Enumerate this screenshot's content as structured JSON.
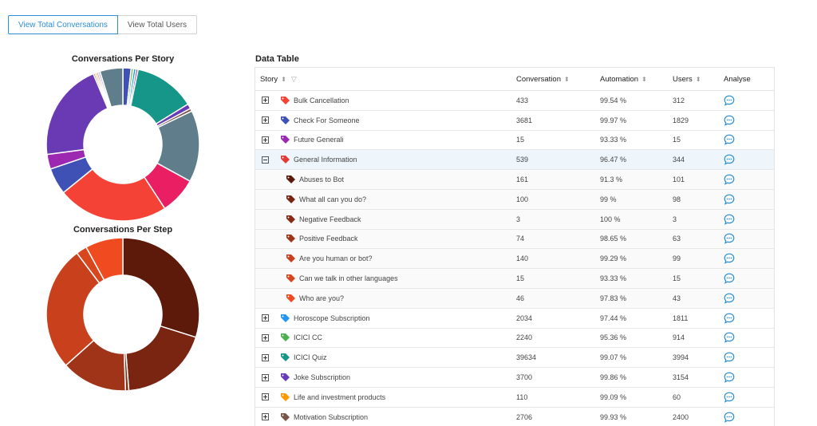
{
  "toggle": {
    "total_conversations": "View Total Conversations",
    "total_users": "View Total Users"
  },
  "charts": {
    "story_title": "Conversations Per Story",
    "step_title": "Conversations Per Step"
  },
  "story_segments": [
    {
      "value": 2.0,
      "color": "#3f51b5"
    },
    {
      "value": 0.6,
      "color": "#8bc34a"
    },
    {
      "value": 0.6,
      "color": "#03a9f4"
    },
    {
      "value": 0.5,
      "color": "#9c27b0"
    },
    {
      "value": 15.0,
      "color": "#169689"
    },
    {
      "value": 1.2,
      "color": "#673ab7"
    },
    {
      "value": 0.7,
      "color": "#795548"
    },
    {
      "value": 17.5,
      "color": "#607d8b"
    },
    {
      "value": 9.0,
      "color": "#e91e63"
    },
    {
      "value": 27.0,
      "color": "#f44336"
    },
    {
      "value": 6.5,
      "color": "#3f51b5"
    },
    {
      "value": 3.6,
      "color": "#9c27b0"
    },
    {
      "value": 24.0,
      "color": "#6a3ab5"
    },
    {
      "value": 0.4,
      "color": "#795548"
    },
    {
      "value": 0.4,
      "color": "#ff9800"
    },
    {
      "value": 0.4,
      "color": "#e91e63"
    },
    {
      "value": 0.5,
      "color": "#b0bec5"
    },
    {
      "value": 5.6,
      "color": "#607d8b"
    }
  ],
  "step_segments": [
    {
      "value": 30.0,
      "color": "#5d1a0b"
    },
    {
      "value": 19.0,
      "color": "#7a2412"
    },
    {
      "value": 0.7,
      "color": "#8a2a14"
    },
    {
      "value": 14.0,
      "color": "#a03418"
    },
    {
      "value": 26.5,
      "color": "#c8411c"
    },
    {
      "value": 2.3,
      "color": "#d8461e"
    },
    {
      "value": 8.0,
      "color": "#f04b20"
    }
  ],
  "table": {
    "title": "Data Table",
    "columns": {
      "story": "Story",
      "conversation": "Conversation",
      "automation": "Automation",
      "users": "Users",
      "analyse": "Analyse"
    },
    "rows": [
      {
        "name": "Bulk Cancellation",
        "conversation": "433",
        "automation": "99.54 %",
        "users": "312",
        "tag_color": "#f44336",
        "state": "collapsed"
      },
      {
        "name": "Check For Someone",
        "conversation": "3681",
        "automation": "99.97 %",
        "users": "1829",
        "tag_color": "#3f51b5",
        "state": "collapsed"
      },
      {
        "name": "Future Generali",
        "conversation": "15",
        "automation": "93.33 %",
        "users": "15",
        "tag_color": "#9c27b0",
        "state": "collapsed"
      },
      {
        "name": "General Information",
        "conversation": "539",
        "automation": "96.47 %",
        "users": "344",
        "tag_color": "#e53935",
        "state": "expanded"
      },
      {
        "name": "Abuses to Bot",
        "conversation": "161",
        "automation": "91.3 %",
        "users": "101",
        "tag_color": "#5d1a0b",
        "state": "child"
      },
      {
        "name": "What all can you do?",
        "conversation": "100",
        "automation": "99 %",
        "users": "98",
        "tag_color": "#7a2412",
        "state": "child"
      },
      {
        "name": "Negative Feedback",
        "conversation": "3",
        "automation": "100 %",
        "users": "3",
        "tag_color": "#8a2a14",
        "state": "child"
      },
      {
        "name": "Positive Feedback",
        "conversation": "74",
        "automation": "98.65 %",
        "users": "63",
        "tag_color": "#a03418",
        "state": "child"
      },
      {
        "name": "Are you human or bot?",
        "conversation": "140",
        "automation": "99.29 %",
        "users": "99",
        "tag_color": "#c8411c",
        "state": "child"
      },
      {
        "name": "Can we talk in other languages",
        "conversation": "15",
        "automation": "93.33 %",
        "users": "15",
        "tag_color": "#d8461e",
        "state": "child"
      },
      {
        "name": "Who are you?",
        "conversation": "46",
        "automation": "97.83 %",
        "users": "43",
        "tag_color": "#f04b20",
        "state": "child"
      },
      {
        "name": "Horoscope Subscription",
        "conversation": "2034",
        "automation": "97.44 %",
        "users": "1811",
        "tag_color": "#2196f3",
        "state": "collapsed"
      },
      {
        "name": "ICICI CC",
        "conversation": "2240",
        "automation": "95.36 %",
        "users": "914",
        "tag_color": "#4caf50",
        "state": "collapsed"
      },
      {
        "name": "ICICI Quiz",
        "conversation": "39634",
        "automation": "99.07 %",
        "users": "3994",
        "tag_color": "#169689",
        "state": "collapsed"
      },
      {
        "name": "Joke Subscription",
        "conversation": "3700",
        "automation": "99.86 %",
        "users": "3154",
        "tag_color": "#673ab7",
        "state": "collapsed"
      },
      {
        "name": "Life and investment products",
        "conversation": "110",
        "automation": "99.09 %",
        "users": "60",
        "tag_color": "#ff9800",
        "state": "collapsed"
      },
      {
        "name": "Motivation Subscription",
        "conversation": "2706",
        "automation": "99.93 %",
        "users": "2400",
        "tag_color": "#795548",
        "state": "collapsed"
      }
    ]
  },
  "icons": {
    "sort": "sort-icon",
    "filter": "filter-icon",
    "tag": "tag-icon",
    "analyse": "chat-bubble-icon",
    "expand": "plus-square-icon",
    "collapse": "minus-square-icon"
  }
}
